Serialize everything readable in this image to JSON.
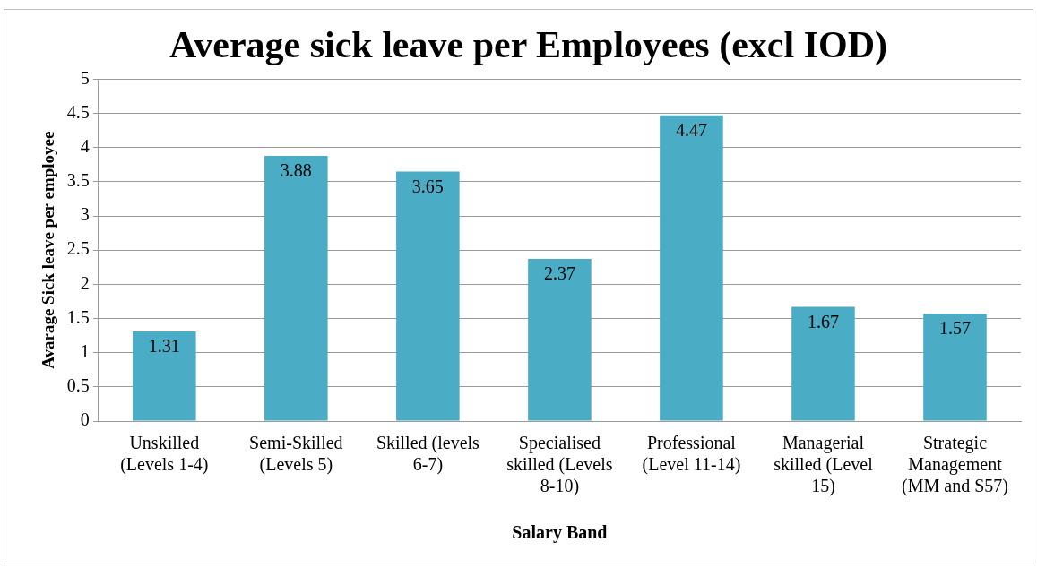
{
  "chart_data": {
    "type": "bar",
    "title": "Average sick leave per Employees (excl IOD)",
    "xlabel": "Salary Band",
    "ylabel": "Avarage Sick leave per employee",
    "categories": [
      "Unskilled (Levels 1-4)",
      "Semi-Skilled (Levels 5)",
      "Skilled (levels 6-7)",
      "Specialised skilled (Levels 8-10)",
      "Professional (Level 11-14)",
      "Managerial skilled (Level 15)",
      "Strategic Management (MM and S57)"
    ],
    "values": [
      1.31,
      3.88,
      3.65,
      2.37,
      4.47,
      1.67,
      1.57
    ],
    "color": "#4bacc6",
    "ylim": [
      0,
      5
    ],
    "yticks": [
      0,
      0.5,
      1,
      1.5,
      2,
      2.5,
      3,
      3.5,
      4,
      4.5,
      5
    ],
    "grid": "y",
    "legend": false,
    "data_labels": true
  }
}
